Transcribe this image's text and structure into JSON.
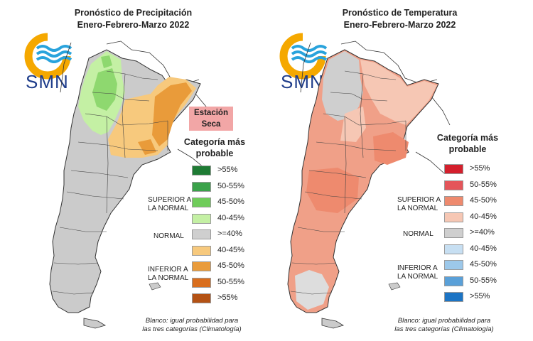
{
  "logo": {
    "text": "SMN",
    "icon": "smn-sun-waves-logo"
  },
  "precipitation": {
    "title_line1": "Pronóstico de Precipitación",
    "title_line2": "Enero-Febrero-Marzo 2022",
    "badge_line1": "Estación",
    "badge_line2": "Seca",
    "category_title_line1": "Categoría más",
    "category_title_line2": "probable",
    "legend": [
      {
        "label": ">55%",
        "color": "#1e7b34"
      },
      {
        "label": "50-55%",
        "color": "#3aa24a"
      },
      {
        "label": "45-50%",
        "color": "#6fcc5a"
      },
      {
        "label": "40-45%",
        "color": "#c4f0a4"
      },
      {
        "label": ">=40%",
        "color": "#cfcfcf"
      },
      {
        "label": "40-45%",
        "color": "#f7c97d"
      },
      {
        "label": "45-50%",
        "color": "#e99b3a"
      },
      {
        "label": "50-55%",
        "color": "#d96e1d"
      },
      {
        "label": ">55%",
        "color": "#b45214"
      }
    ],
    "group_superior": [
      "SUPERIOR A",
      "LA NORMAL"
    ],
    "group_normal": "NORMAL",
    "group_inferior": [
      "INFERIOR A",
      "LA NORMAL"
    ],
    "footnote_line1": "Blanco: igual probabilidad para",
    "footnote_line2": "las tres categorías (Climatología)"
  },
  "temperature": {
    "title_line1": "Pronóstico de Temperatura",
    "title_line2": "Enero-Febrero-Marzo 2022",
    "category_title_line1": "Categoría más",
    "category_title_line2": "probable",
    "legend": [
      {
        "label": ">55%",
        "color": "#d41f2c"
      },
      {
        "label": "50-55%",
        "color": "#e4555a"
      },
      {
        "label": "45-50%",
        "color": "#ee8a6e"
      },
      {
        "label": "40-45%",
        "color": "#f6c7b4"
      },
      {
        "label": ">=40%",
        "color": "#cfcfcf"
      },
      {
        "label": "40-45%",
        "color": "#c7dff2"
      },
      {
        "label": "45-50%",
        "color": "#9cc8ea"
      },
      {
        "label": "50-55%",
        "color": "#5aa0d8"
      },
      {
        "label": ">55%",
        "color": "#1c74c4"
      }
    ],
    "group_superior": [
      "SUPERIOR A",
      "LA NORMAL"
    ],
    "group_normal": "NORMAL",
    "group_inferior": [
      "INFERIOR A",
      "LA NORMAL"
    ],
    "footnote_line1": "Blanco: igual probabilidad para",
    "footnote_line2": "las tres categorías (Climatología)"
  }
}
